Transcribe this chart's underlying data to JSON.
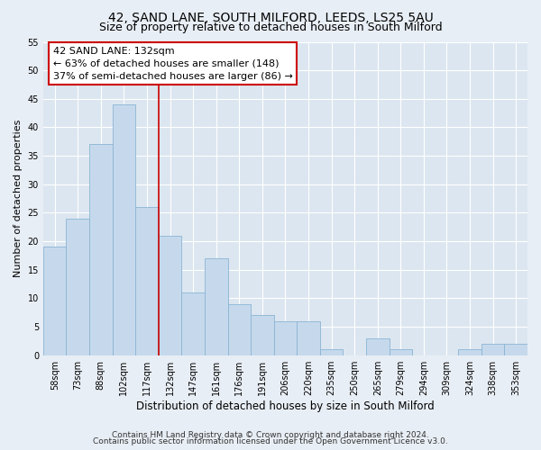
{
  "title": "42, SAND LANE, SOUTH MILFORD, LEEDS, LS25 5AU",
  "subtitle": "Size of property relative to detached houses in South Milford",
  "xlabel": "Distribution of detached houses by size in South Milford",
  "ylabel": "Number of detached properties",
  "bar_color": "#c6d9ec",
  "bar_edge_color": "#8ab4d4",
  "highlight_line_color": "#cc0000",
  "annotation_title": "42 SAND LANE: 132sqm",
  "annotation_line1": "← 63% of detached houses are smaller (148)",
  "annotation_line2": "37% of semi-detached houses are larger (86) →",
  "annotation_box_color": "#ffffff",
  "annotation_box_edge": "#cc0000",
  "bins": [
    "58sqm",
    "73sqm",
    "88sqm",
    "102sqm",
    "117sqm",
    "132sqm",
    "147sqm",
    "161sqm",
    "176sqm",
    "191sqm",
    "206sqm",
    "220sqm",
    "235sqm",
    "250sqm",
    "265sqm",
    "279sqm",
    "294sqm",
    "309sqm",
    "324sqm",
    "338sqm",
    "353sqm"
  ],
  "values": [
    19,
    24,
    37,
    44,
    26,
    21,
    11,
    17,
    9,
    7,
    6,
    6,
    1,
    0,
    3,
    1,
    0,
    0,
    1,
    2,
    2
  ],
  "ylim": [
    0,
    55
  ],
  "yticks": [
    0,
    5,
    10,
    15,
    20,
    25,
    30,
    35,
    40,
    45,
    50,
    55
  ],
  "footer_line1": "Contains HM Land Registry data © Crown copyright and database right 2024.",
  "footer_line2": "Contains public sector information licensed under the Open Government Licence v3.0.",
  "bg_color": "#e8eef5",
  "plot_bg_color": "#dce6f0",
  "grid_color": "#ffffff",
  "title_fontsize": 10,
  "subtitle_fontsize": 9,
  "xlabel_fontsize": 8.5,
  "ylabel_fontsize": 8,
  "tick_fontsize": 7,
  "footer_fontsize": 6.5,
  "annotation_fontsize": 8
}
